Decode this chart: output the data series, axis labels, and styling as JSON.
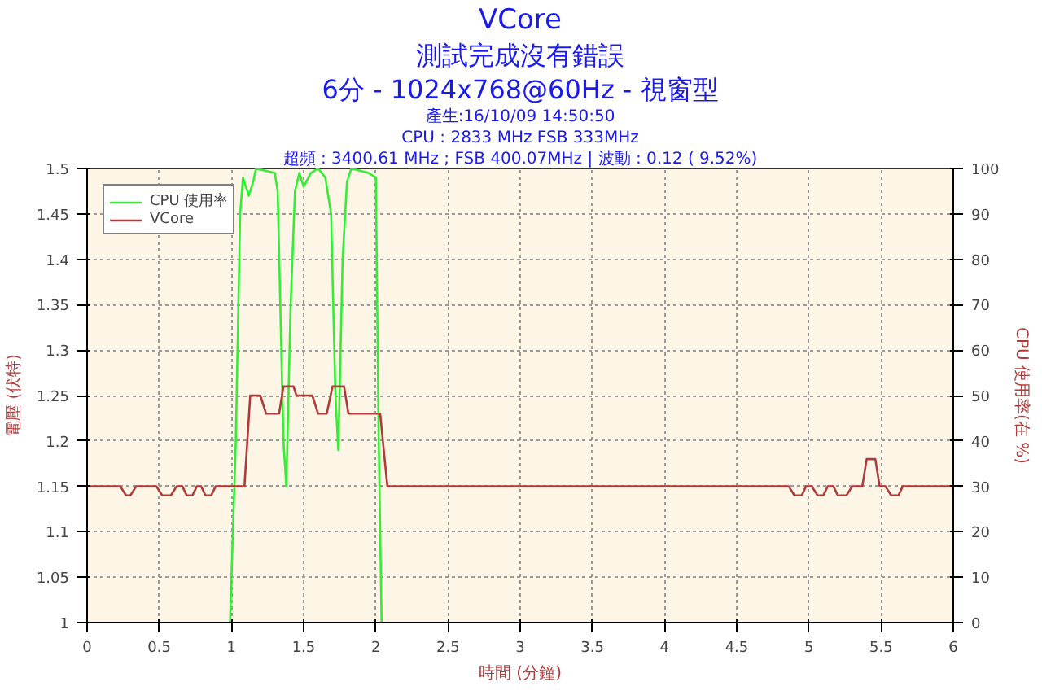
{
  "chart_data": {
    "type": "line",
    "title": "VCore",
    "subtitle": "測試完成沒有錯誤",
    "annotations": [
      "6分 - 1024x768@60Hz - 視窗型",
      "產生:16/10/09 14:50:50",
      "CPU : 2833 MHz FSB 333MHz",
      "超頻 : 3400.61 MHz ; FSB 400.07MHz | 波動 : 0.12 ( 9.52%)"
    ],
    "xlabel": "時間 (分鐘)",
    "ylabel": "電壓 (伏特)",
    "y2label": "CPU 使用率(在 %)",
    "xlim": [
      0,
      6
    ],
    "xticks": [
      0,
      0.5,
      1,
      1.5,
      2,
      2.5,
      3,
      3.5,
      4,
      4.5,
      5,
      5.5,
      6
    ],
    "ylim": [
      1,
      1.5
    ],
    "yticks": [
      1,
      1.05,
      1.1,
      1.15,
      1.2,
      1.25,
      1.3,
      1.35,
      1.4,
      1.45,
      1.5
    ],
    "y2lim": [
      0,
      100
    ],
    "y2ticks": [
      0,
      10,
      20,
      30,
      40,
      50,
      60,
      70,
      80,
      90,
      100
    ],
    "grid": true,
    "legend": "top left",
    "line_style": "solid",
    "series": [
      {
        "name": "CPU 使用率",
        "color": "#33ee33",
        "axis": "y2",
        "x": [
          0.99,
          1.03,
          1.06,
          1.08,
          1.1,
          1.12,
          1.15,
          1.17,
          1.3,
          1.32,
          1.36,
          1.38,
          1.41,
          1.44,
          1.47,
          1.5,
          1.55,
          1.6,
          1.65,
          1.69,
          1.72,
          1.74,
          1.77,
          1.8,
          1.83,
          1.95,
          2.0,
          2.02,
          2.04
        ],
        "values": [
          0,
          40,
          90,
          98,
          96,
          94,
          97,
          100,
          99,
          95,
          40,
          30,
          70,
          95,
          99,
          96,
          99,
          100,
          98,
          90,
          50,
          38,
          80,
          97,
          100,
          99,
          98,
          40,
          0
        ]
      },
      {
        "name": "VCore",
        "color": "#b03a3a",
        "x": [
          0,
          0.23,
          0.27,
          0.3,
          0.34,
          0.48,
          0.52,
          0.58,
          0.62,
          0.66,
          0.69,
          0.73,
          0.76,
          0.79,
          0.82,
          0.86,
          0.89,
          1.09,
          1.13,
          1.2,
          1.24,
          1.33,
          1.36,
          1.43,
          1.45,
          1.56,
          1.6,
          1.66,
          1.7,
          1.78,
          1.81,
          2.03,
          2.08,
          4.86,
          4.9,
          4.95,
          4.98,
          5.02,
          5.06,
          5.1,
          5.13,
          5.17,
          5.2,
          5.26,
          5.3,
          5.37,
          5.4,
          5.46,
          5.49,
          5.53,
          5.57,
          5.62,
          5.65,
          6
        ],
        "values": [
          1.15,
          1.15,
          1.14,
          1.14,
          1.15,
          1.15,
          1.14,
          1.14,
          1.15,
          1.15,
          1.14,
          1.14,
          1.15,
          1.15,
          1.14,
          1.14,
          1.15,
          1.15,
          1.25,
          1.25,
          1.23,
          1.23,
          1.26,
          1.26,
          1.25,
          1.25,
          1.23,
          1.23,
          1.26,
          1.26,
          1.23,
          1.23,
          1.15,
          1.15,
          1.14,
          1.14,
          1.15,
          1.15,
          1.14,
          1.14,
          1.15,
          1.15,
          1.14,
          1.14,
          1.15,
          1.15,
          1.18,
          1.18,
          1.15,
          1.15,
          1.14,
          1.14,
          1.15,
          1.15
        ]
      }
    ]
  }
}
